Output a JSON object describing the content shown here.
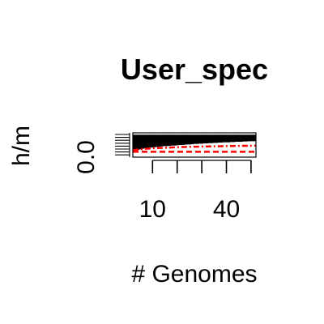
{
  "chart_data": {
    "type": "scatter",
    "title": "User_spec",
    "xlabel": "# Genomes",
    "ylabel": "h/m",
    "xlim": [
      2,
      52
    ],
    "ylim": [
      -0.1,
      0.35
    ],
    "x_ticks": [
      10,
      20,
      30,
      40,
      50
    ],
    "x_tick_labels": [
      "10",
      "",
      "",
      "40",
      ""
    ],
    "y_ticks": [
      0.0
    ],
    "y_tick_labels": [
      "0.0"
    ],
    "grid": false,
    "x_points_per_genome_count": [
      2,
      3,
      4,
      5,
      6,
      7,
      8,
      9,
      10,
      11,
      12,
      13,
      14,
      15,
      16,
      17,
      18,
      19,
      20,
      21,
      22,
      23,
      24,
      25,
      26,
      27,
      28,
      29,
      30,
      31,
      32,
      33,
      34,
      35,
      36,
      37,
      38,
      39,
      40,
      41,
      42,
      43,
      44,
      45,
      46,
      47,
      48,
      49,
      50,
      51,
      52
    ],
    "series": [
      {
        "style": "points",
        "color": "#000000",
        "description_values": "per-genome-count cloud",
        "lower_envelope": [
          0.02,
          0.04,
          0.05,
          0.06,
          0.07,
          0.08,
          0.085,
          0.09,
          0.095,
          0.1,
          0.105,
          0.11,
          0.115,
          0.12,
          0.12,
          0.125,
          0.13,
          0.13,
          0.135,
          0.14,
          0.14,
          0.145,
          0.15,
          0.15,
          0.155,
          0.16,
          0.16,
          0.165,
          0.165,
          0.17,
          0.17,
          0.175,
          0.175,
          0.18,
          0.18,
          0.185,
          0.185,
          0.19,
          0.19,
          0.19,
          0.195,
          0.195,
          0.2,
          0.2,
          0.2,
          0.205,
          0.205,
          0.21,
          0.21,
          0.21,
          0.215
        ],
        "upper_envelope": [
          0.3,
          0.3,
          0.3,
          0.3,
          0.3,
          0.3,
          0.3,
          0.3,
          0.3,
          0.3,
          0.3,
          0.3,
          0.3,
          0.3,
          0.3,
          0.3,
          0.3,
          0.3,
          0.3,
          0.3,
          0.3,
          0.3,
          0.3,
          0.3,
          0.3,
          0.3,
          0.3,
          0.3,
          0.3,
          0.3,
          0.3,
          0.3,
          0.3,
          0.3,
          0.3,
          0.3,
          0.3,
          0.3,
          0.3,
          0.3,
          0.3,
          0.3,
          0.3,
          0.3,
          0.3,
          0.3,
          0.3,
          0.3,
          0.3,
          0.3,
          0.3
        ]
      },
      {
        "style": "dashed-line",
        "color": "#ff0000",
        "values": [
          0.0,
          0.0,
          0.0,
          0.0,
          0.0,
          0.0,
          0.0,
          0.0,
          0.0,
          0.0,
          0.0,
          0.0,
          0.0,
          0.0,
          0.0,
          0.0,
          0.0,
          0.0,
          0.0,
          0.0,
          0.0,
          0.0,
          0.0,
          0.0,
          0.0,
          0.0,
          0.0,
          0.0,
          0.0,
          0.0,
          0.0,
          0.0,
          0.0,
          0.0,
          0.0,
          0.0,
          0.0,
          0.0,
          0.0,
          0.0,
          0.0,
          0.0,
          0.0,
          0.0,
          0.0,
          0.0,
          0.0,
          0.0,
          0.0,
          0.0,
          0.0
        ]
      },
      {
        "style": "dot-dash-line",
        "color": "#ff0000",
        "values": [
          0.03,
          0.035,
          0.04,
          0.045,
          0.05,
          0.055,
          0.058,
          0.061,
          0.064,
          0.066,
          0.068,
          0.07,
          0.072,
          0.074,
          0.076,
          0.078,
          0.08,
          0.082,
          0.084,
          0.086,
          0.087,
          0.088,
          0.09,
          0.091,
          0.092,
          0.093,
          0.094,
          0.095,
          0.096,
          0.097,
          0.098,
          0.099,
          0.1,
          0.1,
          0.101,
          0.102,
          0.103,
          0.104,
          0.105,
          0.105,
          0.106,
          0.107,
          0.108,
          0.108,
          0.109,
          0.11,
          0.11,
          0.111,
          0.112,
          0.112,
          0.113
        ]
      }
    ]
  }
}
